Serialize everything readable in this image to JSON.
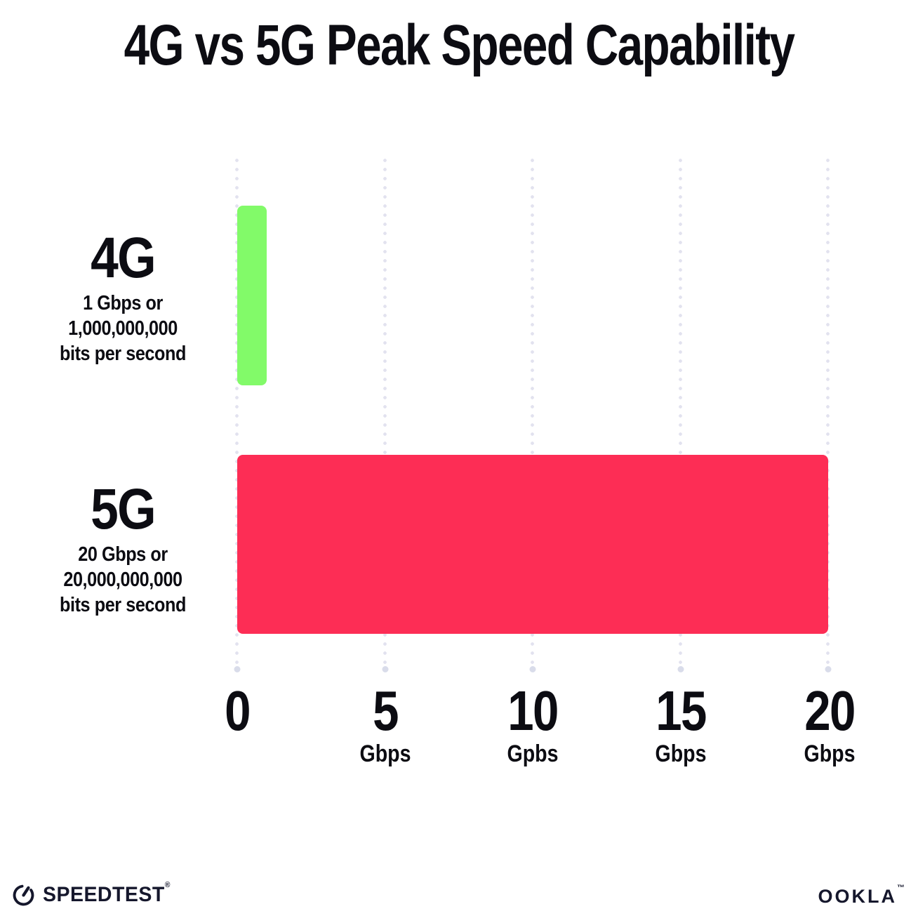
{
  "title": "4G vs 5G Peak Speed Capability",
  "chart_data": {
    "type": "bar",
    "orientation": "horizontal",
    "title": "4G vs 5G Peak Speed Capability",
    "categories": [
      "4G",
      "5G"
    ],
    "values": [
      1,
      20
    ],
    "value_unit": "Gbps",
    "xlim": [
      0,
      20
    ],
    "x_ticks": [
      0,
      5,
      10,
      15,
      20
    ],
    "x_tick_labels": [
      {
        "value": "0",
        "unit": ""
      },
      {
        "value": "5",
        "unit": "Gbps"
      },
      {
        "value": "10",
        "unit": "Gpbs"
      },
      {
        "value": "15",
        "unit": "Gbps"
      },
      {
        "value": "20",
        "unit": "Gbps"
      }
    ],
    "bars": [
      {
        "label": "4G",
        "sublabel_lines": [
          "1 Gbps or",
          "1,000,000,000",
          "bits per second"
        ],
        "value": 1,
        "color": "#82fa69"
      },
      {
        "label": "5G",
        "sublabel_lines": [
          "20 Gbps or",
          "20,000,000,000",
          "bits per second"
        ],
        "value": 20,
        "color": "#fd2d55"
      }
    ],
    "grid": "vertical-dotted",
    "legend": "none"
  },
  "footer": {
    "speedtest": {
      "label": "SPEEDTEST",
      "trademark": "®"
    },
    "ookla": {
      "label": "OOKLA",
      "trademark": "™"
    }
  },
  "colors": {
    "background": "#ffffff",
    "text": "#0c0c12",
    "gridline": "#e2e2ef",
    "bar_4g": "#82fa69",
    "bar_5g": "#fd2d55",
    "logo": "#15172c"
  }
}
